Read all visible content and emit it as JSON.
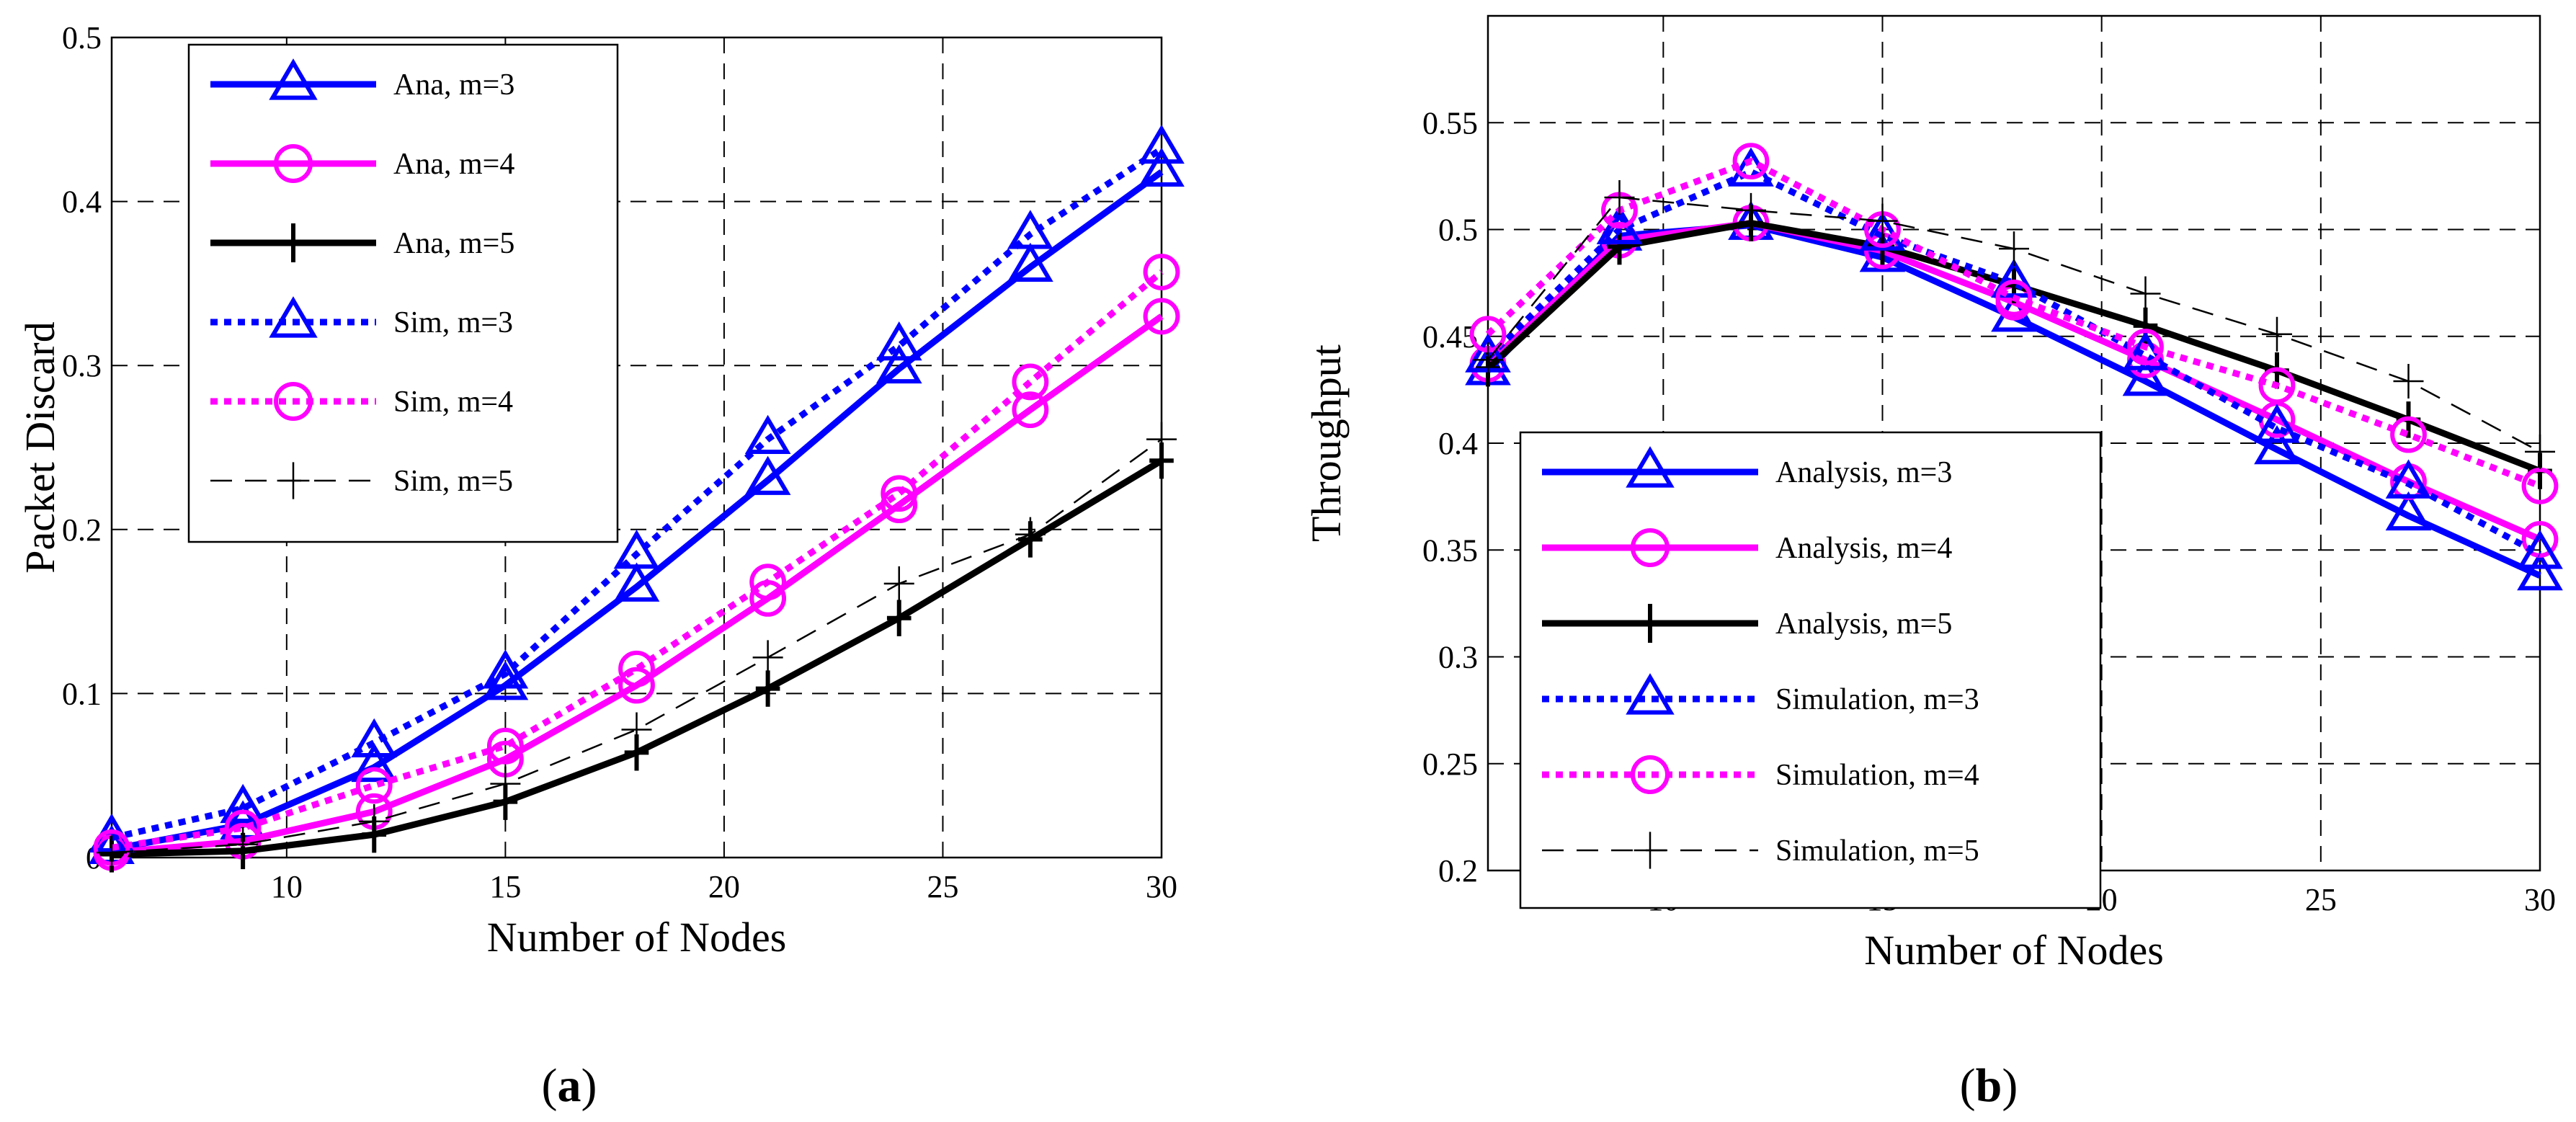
{
  "colors": {
    "blue": "#0000ff",
    "magenta": "#ff00ff",
    "black": "#000000"
  },
  "chart_data": [
    {
      "type": "line",
      "xlabel": "Number of Nodes",
      "ylabel": "Packet Discard",
      "caption_letter": "a",
      "xlim": [
        6,
        30
      ],
      "ylim": [
        0,
        0.5
      ],
      "xticks": [
        "10",
        "15",
        "20",
        "25",
        "30"
      ],
      "yticks": [
        "0",
        "0.1",
        "0.2",
        "0.3",
        "0.4",
        "0.5"
      ],
      "grid": true,
      "legend_position": "top-left",
      "x": [
        6,
        9,
        12,
        15,
        18,
        21,
        24,
        27,
        30
      ],
      "series": [
        {
          "name": "Ana, m=3",
          "color": "#0000ff",
          "style": "solid",
          "marker": "triangle",
          "values": [
            0.005,
            0.02,
            0.055,
            0.105,
            0.165,
            0.23,
            0.298,
            0.36,
            0.418
          ]
        },
        {
          "name": "Ana, m=4",
          "color": "#ff00ff",
          "style": "solid",
          "marker": "circle",
          "values": [
            0.003,
            0.01,
            0.028,
            0.06,
            0.105,
            0.158,
            0.215,
            0.273,
            0.33
          ]
        },
        {
          "name": "Ana, m=5",
          "color": "#000000",
          "style": "solid",
          "marker": "plus",
          "values": [
            0.002,
            0.004,
            0.014,
            0.034,
            0.064,
            0.103,
            0.146,
            0.194,
            0.242
          ]
        },
        {
          "name": "Sim, m=3",
          "color": "#0000ff",
          "style": "dotted",
          "marker": "triangle",
          "values": [
            0.012,
            0.03,
            0.07,
            0.112,
            0.185,
            0.255,
            0.312,
            0.38,
            0.432
          ]
        },
        {
          "name": "Sim, m=4",
          "color": "#ff00ff",
          "style": "dotted",
          "marker": "circle",
          "values": [
            0.006,
            0.018,
            0.044,
            0.068,
            0.115,
            0.168,
            0.222,
            0.29,
            0.357
          ]
        },
        {
          "name": "Sim, m=5",
          "color": "#000000",
          "style": "dashed",
          "marker": "cross",
          "values": [
            0.003,
            0.008,
            0.022,
            0.045,
            0.078,
            0.122,
            0.167,
            0.197,
            0.255
          ]
        }
      ]
    },
    {
      "type": "line",
      "xlabel": "Number of Nodes",
      "ylabel": "Throughput",
      "caption_letter": "b",
      "xlim": [
        6,
        30
      ],
      "ylim": [
        0.2,
        0.6
      ],
      "xticks": [
        "10",
        "15",
        "20",
        "25",
        "30"
      ],
      "yticks": [
        "0.2",
        "0.25",
        "0.3",
        "0.35",
        "0.4",
        "0.45",
        "0.5",
        "0.55"
      ],
      "grid": true,
      "legend_position": "bottom-left",
      "x": [
        6,
        9,
        12,
        15,
        18,
        21,
        24,
        27,
        30
      ],
      "series": [
        {
          "name": "Analysis, m=3",
          "color": "#0000ff",
          "style": "solid",
          "marker": "triangle",
          "values": [
            0.434,
            0.497,
            0.502,
            0.487,
            0.459,
            0.429,
            0.397,
            0.366,
            0.338
          ]
        },
        {
          "name": "Analysis, m=4",
          "color": "#ff00ff",
          "style": "solid",
          "marker": "circle",
          "values": [
            0.437,
            0.495,
            0.503,
            0.49,
            0.466,
            0.439,
            0.411,
            0.382,
            0.355
          ]
        },
        {
          "name": "Analysis, m=5",
          "color": "#000000",
          "style": "solid",
          "marker": "plus",
          "values": [
            0.435,
            0.492,
            0.503,
            0.492,
            0.474,
            0.455,
            0.434,
            0.411,
            0.387
          ]
        },
        {
          "name": "Simulation, m=3",
          "color": "#0000ff",
          "style": "dotted",
          "marker": "triangle",
          "values": [
            0.44,
            0.5,
            0.527,
            0.497,
            0.475,
            0.441,
            0.407,
            0.381,
            0.348
          ]
        },
        {
          "name": "Simulation, m=4",
          "color": "#ff00ff",
          "style": "dotted",
          "marker": "circle",
          "values": [
            0.451,
            0.509,
            0.532,
            0.5,
            0.468,
            0.445,
            0.427,
            0.404,
            0.38
          ]
        },
        {
          "name": "Simulation, m=5",
          "color": "#000000",
          "style": "dashed",
          "marker": "cross",
          "values": [
            0.439,
            0.515,
            0.509,
            0.504,
            0.491,
            0.47,
            0.451,
            0.429,
            0.396
          ]
        }
      ]
    }
  ]
}
